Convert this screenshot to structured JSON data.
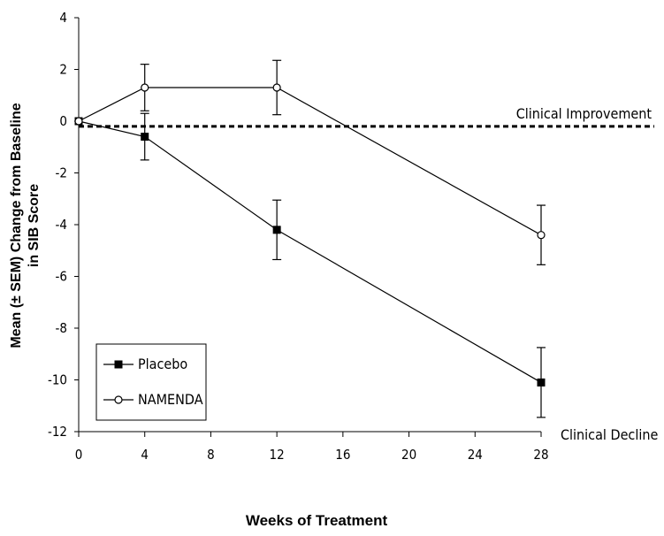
{
  "chart_data": {
    "type": "line",
    "title": "",
    "xlabel": "Weeks of Treatment",
    "ylabel": "Mean (± SEM) Change from Baseline in SIB Score",
    "ylabel_lines": [
      "Mean (± SEM) Change from Baseline",
      "in SIB Score"
    ],
    "xlim": [
      0,
      28
    ],
    "ylim": [
      -12,
      4
    ],
    "x_ticks": [
      0,
      4,
      8,
      12,
      16,
      20,
      24,
      28
    ],
    "y_ticks": [
      4,
      2,
      0,
      -2,
      -4,
      -6,
      -8,
      -10,
      -12
    ],
    "grid": false,
    "legend_position": "bottom-left",
    "series": [
      {
        "name": "Placebo",
        "marker": "filled-square",
        "x": [
          0,
          4,
          12,
          28
        ],
        "y": [
          0.0,
          -0.6,
          -4.2,
          -10.1
        ],
        "err": [
          0,
          0.9,
          1.15,
          1.35
        ]
      },
      {
        "name": "NAMENDA",
        "marker": "open-circle",
        "x": [
          0,
          4,
          12,
          28
        ],
        "y": [
          0.0,
          1.3,
          1.3,
          -4.4
        ],
        "err": [
          0,
          0.9,
          1.05,
          1.15
        ]
      }
    ],
    "reference_line": {
      "y": -0.2,
      "style": "dashed"
    },
    "annotations": [
      {
        "text": "Clinical Improvement",
        "anchor": "above-reference-line"
      },
      {
        "text": "Clinical Decline",
        "anchor": "bottom-right"
      }
    ]
  }
}
